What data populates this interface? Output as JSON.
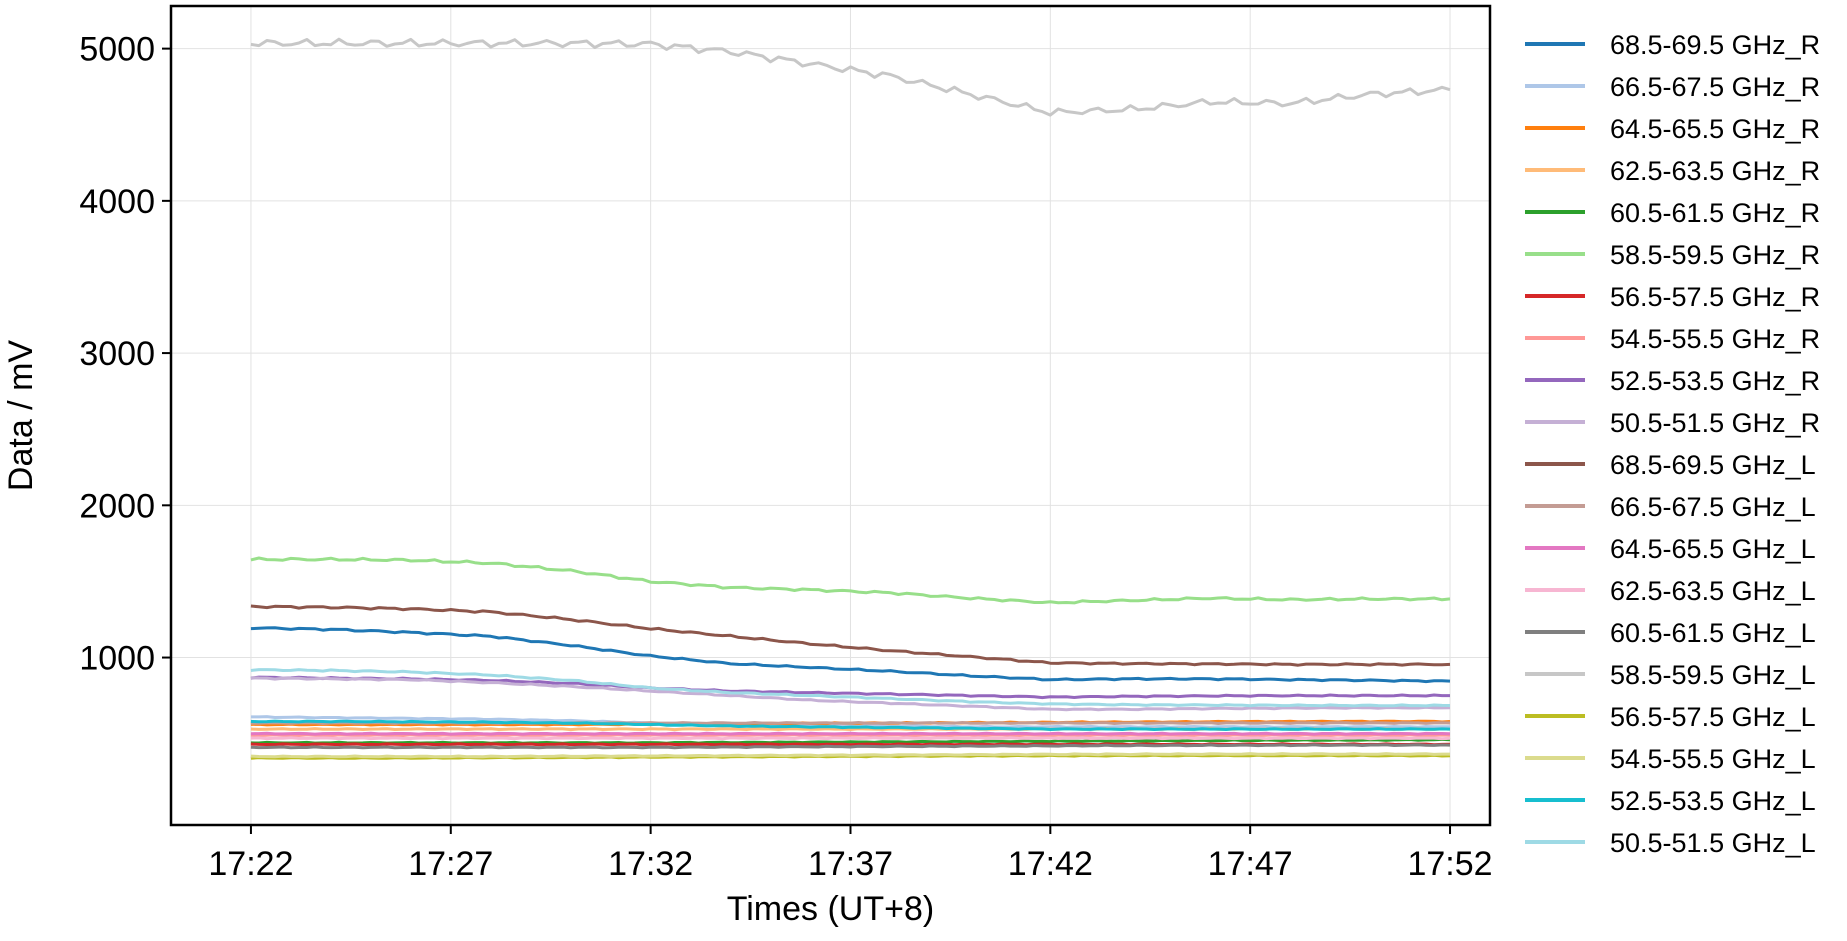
{
  "chart_data": {
    "type": "line",
    "xlabel": "Times (UT+8)",
    "ylabel": "Data / mV",
    "x_ticks": [
      "17:22",
      "17:27",
      "17:32",
      "17:37",
      "17:42",
      "17:47",
      "17:52"
    ],
    "x": [
      "17:22",
      "17:24",
      "17:26",
      "17:28",
      "17:30",
      "17:32",
      "17:34",
      "17:36",
      "17:38",
      "17:40",
      "17:42",
      "17:44",
      "17:46",
      "17:48",
      "17:50",
      "17:52"
    ],
    "xlim": [
      "17:20",
      "17:53"
    ],
    "ylim": [
      -100,
      5280
    ],
    "y_ticks": [
      1000,
      2000,
      3000,
      4000,
      5000
    ],
    "grid": true,
    "legend_position": "right-outside",
    "series": [
      {
        "name": "68.5-69.5 GHz_R",
        "color": "#1f77b4",
        "values": [
          1195,
          1185,
          1165,
          1140,
          1080,
          1010,
          960,
          935,
          910,
          880,
          855,
          860,
          860,
          855,
          850,
          845
        ]
      },
      {
        "name": "66.5-67.5 GHz_R",
        "color": "#aec7e8",
        "values": [
          610,
          605,
          600,
          595,
          585,
          570,
          560,
          555,
          550,
          545,
          545,
          545,
          545,
          545,
          545,
          545
        ]
      },
      {
        "name": "64.5-65.5 GHz_R",
        "color": "#ff7f0e",
        "values": [
          560,
          560,
          560,
          560,
          560,
          562,
          565,
          568,
          570,
          572,
          574,
          576,
          578,
          579,
          580,
          580
        ]
      },
      {
        "name": "62.5-63.5 GHz_R",
        "color": "#ffbb78",
        "values": [
          530,
          530,
          530,
          530,
          530,
          530,
          530,
          530,
          530,
          530,
          530,
          530,
          530,
          530,
          530,
          530
        ]
      },
      {
        "name": "60.5-61.5 GHz_R",
        "color": "#2ca02c",
        "values": [
          440,
          440,
          440,
          440,
          440,
          440,
          442,
          444,
          446,
          448,
          450,
          452,
          455,
          457,
          458,
          460
        ]
      },
      {
        "name": "58.5-59.5 GHz_R",
        "color": "#98df8a",
        "values": [
          1645,
          1645,
          1640,
          1620,
          1570,
          1500,
          1460,
          1445,
          1425,
          1390,
          1360,
          1375,
          1390,
          1380,
          1385,
          1385
        ]
      },
      {
        "name": "56.5-57.5 GHz_R",
        "color": "#d62728",
        "values": [
          430,
          430,
          430,
          430,
          430,
          430,
          430,
          430,
          430,
          430,
          430,
          430,
          430,
          430,
          430,
          430
        ]
      },
      {
        "name": "54.5-55.5 GHz_R",
        "color": "#ff9896",
        "values": [
          490,
          490,
          490,
          490,
          490,
          490,
          490,
          490,
          490,
          490,
          490,
          490,
          490,
          490,
          490,
          490
        ]
      },
      {
        "name": "52.5-53.5 GHz_R",
        "color": "#9467bd",
        "values": [
          870,
          865,
          860,
          850,
          830,
          800,
          780,
          770,
          760,
          750,
          740,
          745,
          748,
          750,
          750,
          750
        ]
      },
      {
        "name": "50.5-51.5 GHz_R",
        "color": "#c5b0d5",
        "values": [
          865,
          860,
          855,
          835,
          810,
          780,
          750,
          720,
          700,
          680,
          660,
          660,
          665,
          668,
          670,
          670
        ]
      },
      {
        "name": "68.5-69.5 GHz_L",
        "color": "#8c564b",
        "values": [
          1335,
          1330,
          1320,
          1300,
          1250,
          1190,
          1140,
          1090,
          1045,
          1005,
          965,
          960,
          958,
          955,
          955,
          955
        ]
      },
      {
        "name": "66.5-67.5 GHz_L",
        "color": "#c49c94",
        "values": [
          570,
          570,
          570,
          570,
          570,
          570,
          570,
          570,
          570,
          570,
          570,
          570,
          570,
          570,
          570,
          570
        ]
      },
      {
        "name": "64.5-65.5 GHz_L",
        "color": "#e377c2",
        "values": [
          500,
          500,
          500,
          500,
          500,
          500,
          500,
          500,
          500,
          500,
          500,
          500,
          500,
          500,
          500,
          500
        ]
      },
      {
        "name": "62.5-63.5 GHz_L",
        "color": "#f7b6d2",
        "values": [
          470,
          470,
          470,
          470,
          470,
          470,
          470,
          470,
          470,
          470,
          470,
          470,
          470,
          470,
          470,
          470
        ]
      },
      {
        "name": "60.5-61.5 GHz_L",
        "color": "#7f7f7f",
        "values": [
          410,
          410,
          410,
          410,
          410,
          410,
          412,
          414,
          416,
          418,
          420,
          422,
          423,
          424,
          425,
          425
        ]
      },
      {
        "name": "58.5-59.5 GHz_L",
        "color": "#c7c7c7",
        "values": [
          5035,
          5035,
          5035,
          5035,
          5035,
          5030,
          4980,
          4900,
          4820,
          4700,
          4580,
          4600,
          4650,
          4640,
          4700,
          4730
        ]
      },
      {
        "name": "56.5-57.5 GHz_L",
        "color": "#bcbd22",
        "values": [
          340,
          340,
          340,
          342,
          344,
          346,
          348,
          350,
          352,
          354,
          355,
          356,
          356,
          356,
          356,
          355
        ]
      },
      {
        "name": "54.5-55.5 GHz_L",
        "color": "#dbdb8d",
        "values": [
          350,
          350,
          350,
          350,
          352,
          354,
          356,
          358,
          360,
          362,
          364,
          365,
          366,
          366,
          366,
          366
        ]
      },
      {
        "name": "52.5-53.5 GHz_L",
        "color": "#17becf",
        "values": [
          580,
          580,
          578,
          575,
          570,
          560,
          550,
          545,
          540,
          535,
          530,
          530,
          530,
          530,
          530,
          530
        ]
      },
      {
        "name": "50.5-51.5 GHz_L",
        "color": "#9edae5",
        "values": [
          920,
          915,
          905,
          885,
          850,
          800,
          770,
          750,
          730,
          710,
          695,
          690,
          688,
          686,
          685,
          685
        ]
      }
    ]
  }
}
